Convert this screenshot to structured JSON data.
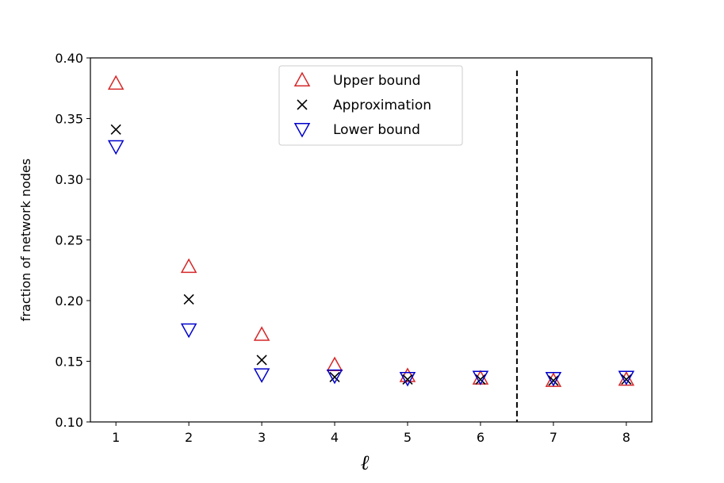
{
  "chart_data": {
    "type": "scatter",
    "xlabel": "ℓ",
    "ylabel": "fraction of network nodes",
    "xlim": [
      0.65,
      8.35
    ],
    "ylim": [
      0.1,
      0.4
    ],
    "xticks": [
      1,
      2,
      3,
      4,
      5,
      6,
      7,
      8
    ],
    "yticks": [
      0.1,
      0.15,
      0.2,
      0.25,
      0.3,
      0.35,
      0.4
    ],
    "ytick_labels": [
      "0.10",
      "0.15",
      "0.20",
      "0.25",
      "0.30",
      "0.35",
      "0.40"
    ],
    "vline": {
      "x": 6.5,
      "style": "dashed",
      "color": "#000000"
    },
    "legend_position": "upper center",
    "series": [
      {
        "name": "Upper bound",
        "marker": "triangle-up",
        "color": "#d62728",
        "x": [
          1,
          2,
          3,
          4,
          5,
          6,
          7,
          8
        ],
        "y": [
          0.379,
          0.228,
          0.172,
          0.147,
          0.138,
          0.136,
          0.134,
          0.135
        ]
      },
      {
        "name": "Approximation",
        "marker": "x",
        "color": "#000000",
        "x": [
          1,
          2,
          3,
          4,
          5,
          6,
          7,
          8
        ],
        "y": [
          0.341,
          0.201,
          0.151,
          0.137,
          0.135,
          0.135,
          0.134,
          0.135
        ]
      },
      {
        "name": "Lower bound",
        "marker": "triangle-down",
        "color": "#0000cc",
        "x": [
          1,
          2,
          3,
          4,
          5,
          6,
          7,
          8
        ],
        "y": [
          0.327,
          0.176,
          0.139,
          0.138,
          0.136,
          0.137,
          0.136,
          0.137
        ]
      }
    ]
  }
}
